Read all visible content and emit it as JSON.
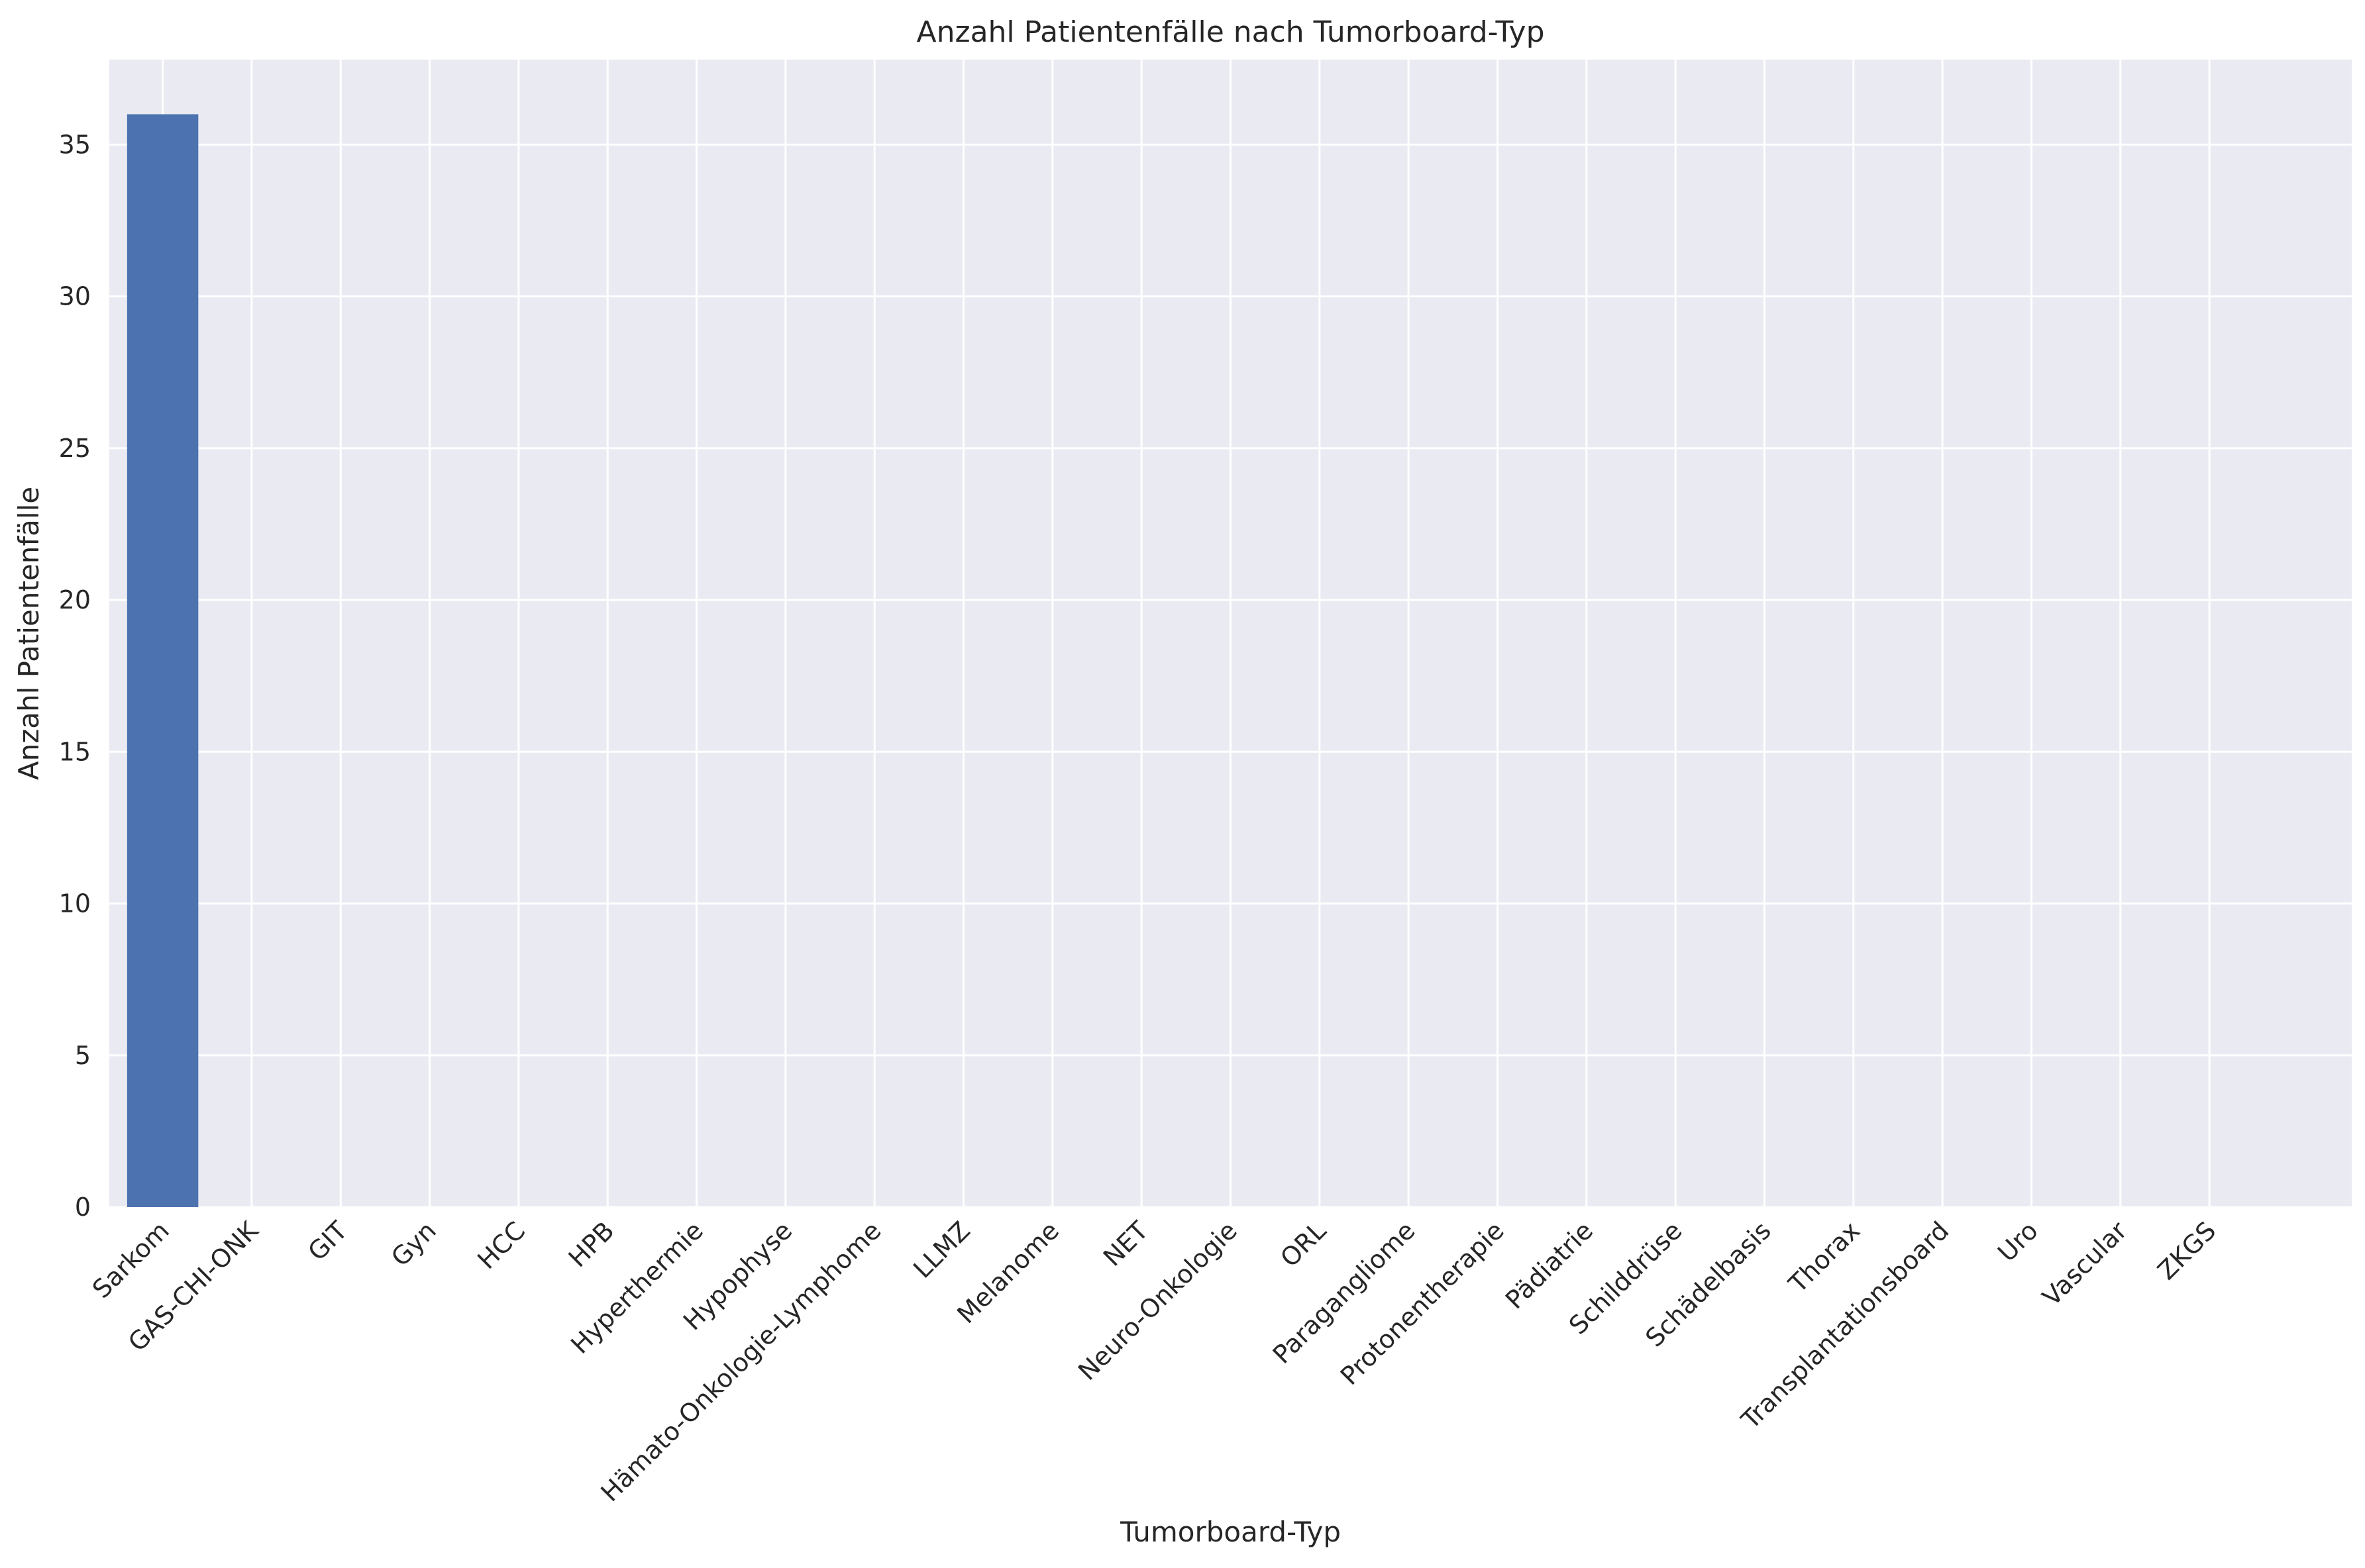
{
  "chart_data": {
    "type": "bar",
    "title": "Anzahl Patientenfälle nach Tumorboard-Typ",
    "xlabel": "Tumorboard-Typ",
    "ylabel": "Anzahl Patientenfälle",
    "categories": [
      "Sarkom",
      "GAS-CHI-ONK",
      "GIT",
      "Gyn",
      "HCC",
      "HPB",
      "Hyperthermie",
      "Hypophyse",
      "Hämato-Onkologie-Lymphome",
      "LLMZ",
      "Melanome",
      "NET",
      "Neuro-Onkologie",
      "ORL",
      "Paragangliome",
      "Protonentherapie",
      "Pädiatrie",
      "Schilddrüse",
      "Schädelbasis",
      "Thorax",
      "Transplantationsboard",
      "Uro",
      "Vascular",
      "ZKGS"
    ],
    "values": [
      36,
      0,
      0,
      0,
      0,
      0,
      0,
      0,
      0,
      0,
      0,
      0,
      0,
      0,
      0,
      0,
      0,
      0,
      0,
      0,
      0,
      0,
      0,
      0
    ],
    "ylim": [
      0,
      37.8
    ],
    "yticks": [
      0,
      5,
      10,
      15,
      20,
      25,
      30,
      35
    ],
    "grid": true,
    "legend": "none",
    "colors": {
      "bar": "#4c72b0",
      "plot_background": "#eaeaf2",
      "grid": "#ffffff",
      "text": "#262626"
    }
  }
}
